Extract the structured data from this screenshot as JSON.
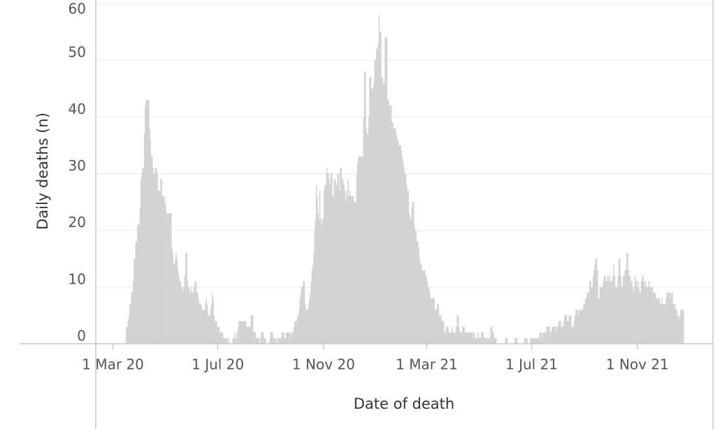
{
  "chart_data": {
    "type": "bar",
    "x_label": "Date of death",
    "y_label": "Daily deaths (n)",
    "color": "#d3d3d3",
    "grid": true,
    "xlim": [
      "2020-02-10",
      "2022-01-28"
    ],
    "ylim": [
      0,
      60
    ],
    "yticks": [
      0,
      10,
      20,
      30,
      40,
      50,
      60
    ],
    "xticks": [
      {
        "value": "2020-03-01",
        "label": "1 Mar 20"
      },
      {
        "value": "2020-07-01",
        "label": "1 Jul 20"
      },
      {
        "value": "2020-11-01",
        "label": "1 Nov 20"
      },
      {
        "value": "2021-03-01",
        "label": "1 Mar 21"
      },
      {
        "value": "2021-07-01",
        "label": "1 Jul 21"
      },
      {
        "value": "2021-11-01",
        "label": "1 Nov 21"
      }
    ],
    "x": [
      "2020-03-16",
      "2020-03-17",
      "2020-03-18",
      "2020-03-19",
      "2020-03-20",
      "2020-03-21",
      "2020-03-22",
      "2020-03-23",
      "2020-03-24",
      "2020-03-25",
      "2020-03-26",
      "2020-03-27",
      "2020-03-28",
      "2020-03-29",
      "2020-03-30",
      "2020-03-31",
      "2020-04-01",
      "2020-04-02",
      "2020-04-03",
      "2020-04-04",
      "2020-04-05",
      "2020-04-06",
      "2020-04-07",
      "2020-04-08",
      "2020-04-09",
      "2020-04-10",
      "2020-04-11",
      "2020-04-12",
      "2020-04-13",
      "2020-04-14",
      "2020-04-15",
      "2020-04-16",
      "2020-04-17",
      "2020-04-18",
      "2020-04-19",
      "2020-04-20",
      "2020-04-21",
      "2020-04-22",
      "2020-04-23",
      "2020-04-24",
      "2020-04-25",
      "2020-04-26",
      "2020-04-27",
      "2020-04-28",
      "2020-04-29",
      "2020-04-30",
      "2020-05-01",
      "2020-05-02",
      "2020-05-03",
      "2020-05-04",
      "2020-05-05",
      "2020-05-06",
      "2020-05-07",
      "2020-05-08",
      "2020-05-09",
      "2020-05-10",
      "2020-05-11",
      "2020-05-12",
      "2020-05-13",
      "2020-05-14",
      "2020-05-15",
      "2020-05-16",
      "2020-05-17",
      "2020-05-18",
      "2020-05-19",
      "2020-05-20",
      "2020-05-21",
      "2020-05-22",
      "2020-05-23",
      "2020-05-24",
      "2020-05-25",
      "2020-05-26",
      "2020-05-27",
      "2020-05-28",
      "2020-05-29",
      "2020-05-30",
      "2020-05-31",
      "2020-06-01",
      "2020-06-02",
      "2020-06-03",
      "2020-06-04",
      "2020-06-05",
      "2020-06-06",
      "2020-06-07",
      "2020-06-08",
      "2020-06-09",
      "2020-06-10",
      "2020-06-11",
      "2020-06-12",
      "2020-06-13",
      "2020-06-14",
      "2020-06-15",
      "2020-06-16",
      "2020-06-17",
      "2020-06-18",
      "2020-06-19",
      "2020-06-20",
      "2020-06-21",
      "2020-06-22",
      "2020-06-23",
      "2020-06-24",
      "2020-06-25",
      "2020-06-26",
      "2020-06-27",
      "2020-06-28",
      "2020-06-29",
      "2020-06-30",
      "2020-07-01",
      "2020-07-02",
      "2020-07-03",
      "2020-07-04",
      "2020-07-05",
      "2020-07-06",
      "2020-07-07",
      "2020-07-08",
      "2020-07-09",
      "2020-07-10",
      "2020-07-11",
      "2020-07-12",
      "2020-07-13",
      "2020-07-14",
      "2020-07-15",
      "2020-07-16",
      "2020-07-17",
      "2020-07-18",
      "2020-07-19",
      "2020-07-20",
      "2020-07-21",
      "2020-07-22",
      "2020-07-23",
      "2020-07-24",
      "2020-07-25",
      "2020-07-26",
      "2020-07-27",
      "2020-07-28",
      "2020-07-29",
      "2020-07-30",
      "2020-07-31",
      "2020-08-01",
      "2020-08-02",
      "2020-08-03",
      "2020-08-04",
      "2020-08-05",
      "2020-08-06",
      "2020-08-07",
      "2020-08-08",
      "2020-08-09",
      "2020-08-10",
      "2020-08-11",
      "2020-08-12",
      "2020-08-13",
      "2020-08-14",
      "2020-08-15",
      "2020-08-16",
      "2020-08-17",
      "2020-08-18",
      "2020-08-19",
      "2020-08-20",
      "2020-08-21",
      "2020-08-22",
      "2020-08-23",
      "2020-08-24",
      "2020-08-25",
      "2020-08-26",
      "2020-08-27",
      "2020-08-28",
      "2020-08-29",
      "2020-08-30",
      "2020-08-31",
      "2020-09-01",
      "2020-09-02",
      "2020-09-03",
      "2020-09-04",
      "2020-09-05",
      "2020-09-06",
      "2020-09-07",
      "2020-09-08",
      "2020-09-09",
      "2020-09-10",
      "2020-09-11",
      "2020-09-12",
      "2020-09-13",
      "2020-09-14",
      "2020-09-15",
      "2020-09-16",
      "2020-09-17",
      "2020-09-18",
      "2020-09-19",
      "2020-09-20",
      "2020-09-21",
      "2020-09-22",
      "2020-09-23",
      "2020-09-24",
      "2020-09-25",
      "2020-09-26",
      "2020-09-27",
      "2020-09-28",
      "2020-09-29",
      "2020-09-30",
      "2020-10-01",
      "2020-10-02",
      "2020-10-03",
      "2020-10-04",
      "2020-10-05",
      "2020-10-06",
      "2020-10-07",
      "2020-10-08",
      "2020-10-09",
      "2020-10-10",
      "2020-10-11",
      "2020-10-12",
      "2020-10-13",
      "2020-10-14",
      "2020-10-15",
      "2020-10-16",
      "2020-10-17",
      "2020-10-18",
      "2020-10-19",
      "2020-10-20",
      "2020-10-21",
      "2020-10-22",
      "2020-10-23",
      "2020-10-24",
      "2020-10-25",
      "2020-10-26",
      "2020-10-27",
      "2020-10-28",
      "2020-10-29",
      "2020-10-30",
      "2020-10-31",
      "2020-11-01",
      "2020-11-02",
      "2020-11-03",
      "2020-11-04",
      "2020-11-05",
      "2020-11-06",
      "2020-11-07",
      "2020-11-08",
      "2020-11-09",
      "2020-11-10",
      "2020-11-11",
      "2020-11-12",
      "2020-11-13",
      "2020-11-14",
      "2020-11-15",
      "2020-11-16",
      "2020-11-17",
      "2020-11-18",
      "2020-11-19",
      "2020-11-20",
      "2020-11-21",
      "2020-11-22",
      "2020-11-23",
      "2020-11-24",
      "2020-11-25",
      "2020-11-26",
      "2020-11-27",
      "2020-11-28",
      "2020-11-29",
      "2020-11-30",
      "2020-12-01",
      "2020-12-02",
      "2020-12-03",
      "2020-12-04",
      "2020-12-05",
      "2020-12-06",
      "2020-12-07",
      "2020-12-08",
      "2020-12-09",
      "2020-12-10",
      "2020-12-11",
      "2020-12-12",
      "2020-12-13",
      "2020-12-14",
      "2020-12-15",
      "2020-12-16",
      "2020-12-17",
      "2020-12-18",
      "2020-12-19",
      "2020-12-20",
      "2020-12-21",
      "2020-12-22",
      "2020-12-23",
      "2020-12-24",
      "2020-12-25",
      "2020-12-26",
      "2020-12-27",
      "2020-12-28",
      "2020-12-29",
      "2020-12-30",
      "2020-12-31",
      "2021-01-01",
      "2021-01-02",
      "2021-01-03",
      "2021-01-04",
      "2021-01-05",
      "2021-01-06",
      "2021-01-07",
      "2021-01-08",
      "2021-01-09",
      "2021-01-10",
      "2021-01-11",
      "2021-01-12",
      "2021-01-13",
      "2021-01-14",
      "2021-01-15",
      "2021-01-16",
      "2021-01-17",
      "2021-01-18",
      "2021-01-19",
      "2021-01-20",
      "2021-01-21",
      "2021-01-22",
      "2021-01-23",
      "2021-01-24",
      "2021-01-25",
      "2021-01-26",
      "2021-01-27",
      "2021-01-28",
      "2021-01-29",
      "2021-01-30",
      "2021-01-31",
      "2021-02-01",
      "2021-02-02",
      "2021-02-03",
      "2021-02-04",
      "2021-02-05",
      "2021-02-06",
      "2021-02-07",
      "2021-02-08",
      "2021-02-09",
      "2021-02-10",
      "2021-02-11",
      "2021-02-12",
      "2021-02-13",
      "2021-02-14",
      "2021-02-15",
      "2021-02-16",
      "2021-02-17",
      "2021-02-18",
      "2021-02-19",
      "2021-02-20",
      "2021-02-21",
      "2021-02-22",
      "2021-02-23",
      "2021-02-24",
      "2021-02-25",
      "2021-02-26",
      "2021-02-27",
      "2021-02-28",
      "2021-03-01",
      "2021-03-02",
      "2021-03-03",
      "2021-03-04",
      "2021-03-05",
      "2021-03-06",
      "2021-03-07",
      "2021-03-08",
      "2021-03-09",
      "2021-03-10",
      "2021-03-11",
      "2021-03-12",
      "2021-03-13",
      "2021-03-14",
      "2021-03-15",
      "2021-03-16",
      "2021-03-17",
      "2021-03-18",
      "2021-03-19",
      "2021-03-20",
      "2021-03-21",
      "2021-03-22",
      "2021-03-23",
      "2021-03-24",
      "2021-03-25",
      "2021-03-26",
      "2021-03-27",
      "2021-03-28",
      "2021-03-29",
      "2021-03-30",
      "2021-03-31",
      "2021-04-01",
      "2021-04-02",
      "2021-04-03",
      "2021-04-04",
      "2021-04-05",
      "2021-04-06",
      "2021-04-07",
      "2021-04-08",
      "2021-04-09",
      "2021-04-10",
      "2021-04-11",
      "2021-04-12",
      "2021-04-13",
      "2021-04-14",
      "2021-04-15",
      "2021-04-16",
      "2021-04-17",
      "2021-04-18",
      "2021-04-19",
      "2021-04-20",
      "2021-04-21",
      "2021-04-22",
      "2021-04-23",
      "2021-04-24",
      "2021-04-25",
      "2021-04-26",
      "2021-04-27",
      "2021-04-28",
      "2021-04-29",
      "2021-04-30",
      "2021-05-01",
      "2021-05-02",
      "2021-05-03",
      "2021-05-04",
      "2021-05-05",
      "2021-05-06",
      "2021-05-07",
      "2021-05-08",
      "2021-05-09",
      "2021-05-10",
      "2021-05-11",
      "2021-05-12",
      "2021-05-13",
      "2021-05-14",
      "2021-05-15",
      "2021-05-16",
      "2021-05-17",
      "2021-05-18",
      "2021-05-19",
      "2021-05-20",
      "2021-05-21",
      "2021-05-22",
      "2021-05-23",
      "2021-05-24",
      "2021-05-25",
      "2021-05-26",
      "2021-05-27",
      "2021-05-28",
      "2021-05-29",
      "2021-05-30",
      "2021-05-31",
      "2021-06-01",
      "2021-06-02",
      "2021-06-03",
      "2021-06-04",
      "2021-06-05",
      "2021-06-06",
      "2021-06-07",
      "2021-06-08",
      "2021-06-09",
      "2021-06-10",
      "2021-06-11",
      "2021-06-12",
      "2021-06-13",
      "2021-06-14",
      "2021-06-15",
      "2021-06-16",
      "2021-06-17",
      "2021-06-18",
      "2021-06-19",
      "2021-06-20",
      "2021-06-21",
      "2021-06-22",
      "2021-06-23",
      "2021-06-24",
      "2021-06-25",
      "2021-06-26",
      "2021-06-27",
      "2021-06-28",
      "2021-06-29",
      "2021-06-30",
      "2021-07-01",
      "2021-07-02",
      "2021-07-03",
      "2021-07-04",
      "2021-07-05",
      "2021-07-06",
      "2021-07-07",
      "2021-07-08",
      "2021-07-09",
      "2021-07-10",
      "2021-07-11",
      "2021-07-12",
      "2021-07-13",
      "2021-07-14",
      "2021-07-15",
      "2021-07-16",
      "2021-07-17",
      "2021-07-18",
      "2021-07-19",
      "2021-07-20",
      "2021-07-21",
      "2021-07-22",
      "2021-07-23",
      "2021-07-24",
      "2021-07-25",
      "2021-07-26",
      "2021-07-27",
      "2021-07-28",
      "2021-07-29",
      "2021-07-30",
      "2021-07-31",
      "2021-08-01",
      "2021-08-02",
      "2021-08-03",
      "2021-08-04",
      "2021-08-05",
      "2021-08-06",
      "2021-08-07",
      "2021-08-08",
      "2021-08-09",
      "2021-08-10",
      "2021-08-11",
      "2021-08-12",
      "2021-08-13",
      "2021-08-14",
      "2021-08-15",
      "2021-08-16",
      "2021-08-17",
      "2021-08-18",
      "2021-08-19",
      "2021-08-20",
      "2021-08-21",
      "2021-08-22",
      "2021-08-23",
      "2021-08-24",
      "2021-08-25",
      "2021-08-26",
      "2021-08-27",
      "2021-08-28",
      "2021-08-29",
      "2021-08-30",
      "2021-08-31",
      "2021-09-01",
      "2021-09-02",
      "2021-09-03",
      "2021-09-04",
      "2021-09-05",
      "2021-09-06",
      "2021-09-07",
      "2021-09-08",
      "2021-09-09",
      "2021-09-10",
      "2021-09-11",
      "2021-09-12",
      "2021-09-13",
      "2021-09-14",
      "2021-09-15",
      "2021-09-16",
      "2021-09-17",
      "2021-09-18",
      "2021-09-19",
      "2021-09-20",
      "2021-09-21",
      "2021-09-22",
      "2021-09-23",
      "2021-09-24",
      "2021-09-25",
      "2021-09-26",
      "2021-09-27",
      "2021-09-28",
      "2021-09-29",
      "2021-09-30",
      "2021-10-01",
      "2021-10-02",
      "2021-10-03",
      "2021-10-04",
      "2021-10-05",
      "2021-10-06",
      "2021-10-07",
      "2021-10-08",
      "2021-10-09",
      "2021-10-10",
      "2021-10-11",
      "2021-10-12",
      "2021-10-13",
      "2021-10-14",
      "2021-10-15",
      "2021-10-16",
      "2021-10-17",
      "2021-10-18",
      "2021-10-19",
      "2021-10-20",
      "2021-10-21",
      "2021-10-22",
      "2021-10-23",
      "2021-10-24",
      "2021-10-25",
      "2021-10-26",
      "2021-10-27",
      "2021-10-28",
      "2021-10-29",
      "2021-10-30",
      "2021-10-31",
      "2021-11-01",
      "2021-11-02",
      "2021-11-03",
      "2021-11-04",
      "2021-11-05",
      "2021-11-06",
      "2021-11-07",
      "2021-11-08",
      "2021-11-09",
      "2021-11-10",
      "2021-11-11",
      "2021-11-12",
      "2021-11-13",
      "2021-11-14",
      "2021-11-15",
      "2021-11-16",
      "2021-11-17",
      "2021-11-18",
      "2021-11-19",
      "2021-11-20",
      "2021-11-21",
      "2021-11-22",
      "2021-11-23",
      "2021-11-24",
      "2021-11-25",
      "2021-11-26",
      "2021-11-27",
      "2021-11-28",
      "2021-11-29",
      "2021-11-30",
      "2021-12-01",
      "2021-12-02",
      "2021-12-03",
      "2021-12-04",
      "2021-12-05",
      "2021-12-06",
      "2021-12-07",
      "2021-12-08",
      "2021-12-09",
      "2021-12-10",
      "2021-12-11",
      "2021-12-12",
      "2021-12-13",
      "2021-12-14",
      "2021-12-15",
      "2021-12-16",
      "2021-12-17",
      "2021-12-18",
      "2021-12-19",
      "2021-12-20",
      "2021-12-21",
      "2021-12-22",
      "2021-12-23",
      "2021-12-24"
    ],
    "values": [
      3,
      3,
      4,
      5,
      7,
      7,
      9,
      9,
      11,
      15,
      15,
      18,
      18,
      21,
      21,
      21,
      24,
      29,
      30,
      31,
      31,
      37,
      42,
      43,
      43,
      43,
      43,
      38,
      36,
      33,
      33,
      31,
      30,
      30,
      31,
      31,
      30,
      27,
      27,
      27,
      29,
      29,
      26,
      26,
      26,
      25,
      24,
      23,
      23,
      23,
      23,
      23,
      23,
      17,
      16,
      14,
      14,
      15,
      16,
      15,
      13,
      12,
      11,
      11,
      10,
      10,
      9,
      10,
      12,
      16,
      16,
      11,
      10,
      10,
      9,
      9,
      10,
      9,
      9,
      10,
      11,
      11,
      9,
      9,
      8,
      7,
      7,
      7,
      6,
      6,
      6,
      6,
      7,
      8,
      7,
      5,
      5,
      5,
      6,
      7,
      9,
      8,
      5,
      4,
      4,
      4,
      3,
      3,
      3,
      2,
      2,
      2,
      2,
      1,
      1,
      1,
      1,
      1,
      0,
      1,
      0,
      0,
      0,
      0,
      1,
      1,
      2,
      1,
      1,
      2,
      3,
      4,
      4,
      4,
      4,
      4,
      4,
      4,
      4,
      4,
      3,
      3,
      3,
      3,
      3,
      5,
      5,
      5,
      2,
      2,
      2,
      1,
      1,
      1,
      1,
      0,
      1,
      2,
      2,
      2,
      1,
      1,
      1,
      0,
      0,
      0,
      0,
      1,
      2,
      2,
      2,
      1,
      1,
      1,
      1,
      0,
      1,
      1,
      1,
      1,
      1,
      2,
      2,
      2,
      1,
      1,
      2,
      2,
      2,
      2,
      2,
      1,
      2,
      2,
      2,
      3,
      4,
      4,
      4,
      5,
      5,
      6,
      8,
      9,
      10,
      10,
      11,
      11,
      7,
      6,
      6,
      6,
      7,
      8,
      9,
      11,
      13,
      14,
      16,
      20,
      22,
      28,
      26,
      23,
      22,
      27,
      22,
      21,
      22,
      22,
      27,
      28,
      28,
      31,
      30,
      30,
      29,
      28,
      30,
      30,
      26,
      26,
      29,
      29,
      28,
      28,
      30,
      30,
      27,
      31,
      31,
      29,
      29,
      28,
      27,
      25,
      27,
      26,
      29,
      26,
      27,
      26,
      26,
      26,
      26,
      25,
      25,
      25,
      30,
      32,
      33,
      33,
      33,
      33,
      33,
      33,
      40,
      48,
      48,
      38,
      37,
      37,
      40,
      47,
      47,
      45,
      45,
      45,
      46,
      50,
      50,
      52,
      52,
      53,
      58,
      55,
      55,
      47,
      47,
      46,
      46,
      54,
      54,
      54,
      43,
      43,
      42,
      42,
      42,
      39,
      39,
      38,
      38,
      38,
      37,
      36,
      36,
      35,
      35,
      35,
      34,
      33,
      32,
      31,
      30,
      30,
      28,
      27,
      27,
      23,
      22,
      22,
      24,
      25,
      25,
      21,
      20,
      20,
      18,
      18,
      17,
      15,
      14,
      14,
      13,
      13,
      13,
      13,
      12,
      12,
      11,
      10,
      10,
      9,
      8,
      8,
      8,
      8,
      8,
      6,
      6,
      6,
      7,
      7,
      5,
      5,
      5,
      4,
      4,
      4,
      2,
      2,
      3,
      3,
      3,
      2,
      2,
      2,
      2,
      3,
      2,
      2,
      2,
      2,
      3,
      5,
      5,
      3,
      2,
      2,
      2,
      3,
      3,
      3,
      2,
      2,
      2,
      2,
      2,
      2,
      2,
      2,
      2,
      2,
      1,
      2,
      1,
      1,
      1,
      2,
      1,
      1,
      1,
      2,
      2,
      2,
      1,
      1,
      1,
      1,
      1,
      1,
      1,
      1,
      3,
      3,
      2,
      2,
      1,
      1,
      1,
      0,
      0,
      0,
      0,
      0,
      0,
      0,
      0,
      0,
      0,
      1,
      1,
      1,
      0,
      0,
      0,
      0,
      0,
      0,
      0,
      0,
      1,
      1,
      1,
      0,
      0,
      0,
      0,
      0,
      0,
      0,
      0,
      1,
      1,
      1,
      1,
      0,
      0,
      0,
      1,
      1,
      1,
      1,
      1,
      1,
      1,
      1,
      1,
      1,
      1,
      2,
      2,
      2,
      1,
      2,
      2,
      2,
      2,
      3,
      3,
      3,
      3,
      2,
      2,
      3,
      3,
      3,
      3,
      3,
      2,
      3,
      3,
      4,
      4,
      4,
      3,
      3,
      3,
      4,
      5,
      5,
      5,
      4,
      4,
      5,
      5,
      5,
      3,
      3,
      3,
      4,
      5,
      6,
      6,
      6,
      5,
      6,
      6,
      6,
      6,
      6,
      7,
      7,
      8,
      8,
      9,
      9,
      9,
      11,
      11,
      10,
      10,
      12,
      13,
      14,
      15,
      15,
      13,
      8,
      8,
      10,
      10,
      10,
      10,
      11,
      12,
      12,
      11,
      11,
      12,
      11,
      12,
      11,
      11,
      11,
      12,
      14,
      12,
      10,
      10,
      10,
      12,
      15,
      15,
      12,
      10,
      10,
      12,
      12,
      13,
      13,
      16,
      16,
      13,
      12,
      12,
      11,
      11,
      10,
      9,
      10,
      12,
      11,
      10,
      11,
      10,
      9,
      9,
      11,
      12,
      12,
      11,
      10,
      11,
      10,
      10,
      10,
      11,
      10,
      10,
      10,
      10,
      9,
      9,
      9,
      8,
      8,
      8,
      8,
      8,
      7,
      7,
      8,
      7,
      7,
      7,
      7,
      8,
      9,
      9,
      9,
      9,
      8,
      9,
      9,
      7,
      7,
      7,
      6,
      6,
      5,
      5,
      4,
      5,
      6,
      6,
      6,
      6
    ]
  }
}
